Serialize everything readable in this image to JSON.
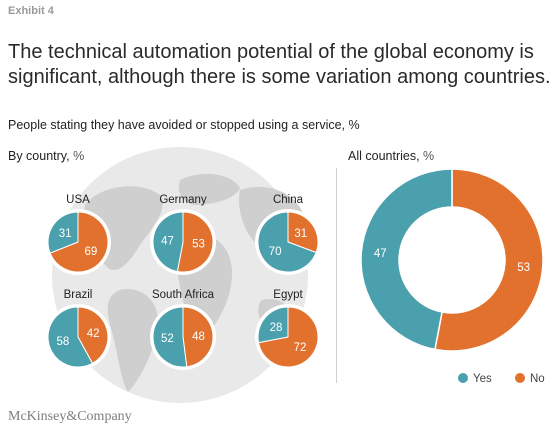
{
  "exhibit": "Exhibit 4",
  "title": "The technical automation potential of the global economy is significant, although there is some variation among countries.",
  "subtitle": "People stating they have avoided or stopped using a service, %",
  "left_panel": {
    "label": "By country,",
    "unit": "%"
  },
  "right_panel": {
    "label": "All countries,",
    "unit": "%"
  },
  "footer": "McKinsey&Company",
  "colors": {
    "yes": "#4ba0ad",
    "no": "#e2712d",
    "map": "#d9d9d9"
  },
  "chart_data": [
    {
      "type": "pie",
      "title": "By country",
      "series_names": [
        "Yes",
        "No"
      ],
      "pies": [
        {
          "label": "USA",
          "yes": 31,
          "no": 69
        },
        {
          "label": "Germany",
          "yes": 47,
          "no": 53
        },
        {
          "label": "China",
          "yes": 70,
          "no": 31
        },
        {
          "label": "Brazil",
          "yes": 58,
          "no": 42
        },
        {
          "label": "South Africa",
          "yes": 52,
          "no": 48
        },
        {
          "label": "Egypt",
          "yes": 28,
          "no": 72
        }
      ]
    },
    {
      "type": "pie",
      "title": "All countries",
      "donut": true,
      "categories": [
        "Yes",
        "No"
      ],
      "values": [
        47,
        53
      ],
      "legend": [
        "Yes",
        "No"
      ],
      "legend_position": "bottom-right"
    }
  ]
}
